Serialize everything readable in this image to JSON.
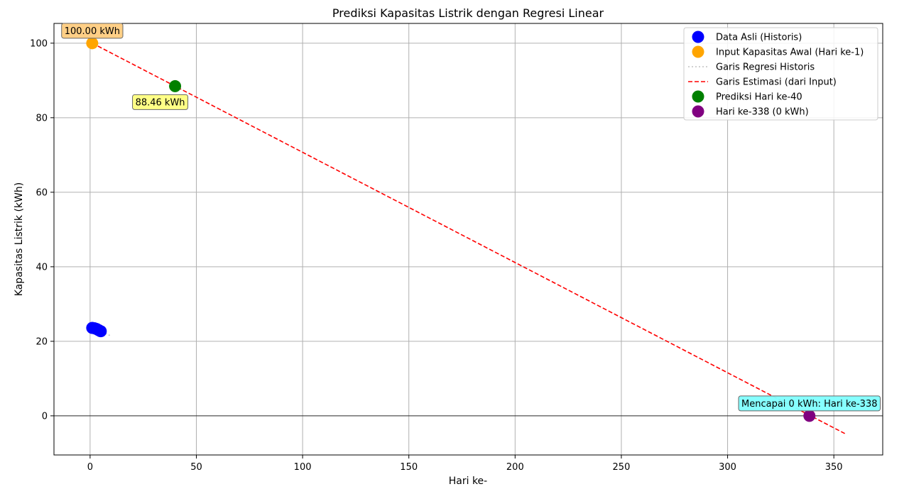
{
  "chart_data": {
    "type": "scatter",
    "title": "Prediksi Kapasitas Listrik dengan Regresi Linear",
    "xlabel": "Hari ke-",
    "ylabel": "Kapasitas Listrik (kWh)",
    "xlim": [
      -17,
      373
    ],
    "ylim": [
      -10.5,
      105.3
    ],
    "xticks": [
      0,
      50,
      100,
      150,
      200,
      250,
      300,
      350
    ],
    "yticks": [
      0,
      20,
      40,
      60,
      80,
      100
    ],
    "grid": true,
    "legend_position": "top-right",
    "zero_line": true,
    "series": [
      {
        "name": "Data Asli (Historis)",
        "kind": "scatter",
        "color": "#0000ff",
        "x": [
          1,
          2,
          3,
          4,
          5
        ],
        "y": [
          23.6,
          23.5,
          23.3,
          23.0,
          22.7
        ]
      },
      {
        "name": "Input Kapasitas Awal (Hari ke-1)",
        "kind": "scatter",
        "color": "#ffa500",
        "x": [
          1
        ],
        "y": [
          100
        ]
      },
      {
        "name": "Garis Regresi Historis",
        "kind": "line",
        "style": "dotted",
        "color": "#c0c0c0",
        "x": [
          1,
          10
        ],
        "y": [
          23.6,
          21.4
        ]
      },
      {
        "name": "Garis Estimasi (dari Input)",
        "kind": "line",
        "style": "dashed",
        "color": "#ff0000",
        "x": [
          1,
          356
        ],
        "y": [
          100,
          -5.0
        ]
      },
      {
        "name": "Prediksi Hari ke-40",
        "kind": "scatter",
        "color": "#008000",
        "x": [
          40
        ],
        "y": [
          88.46
        ]
      },
      {
        "name": "Hari ke-338 (0 kWh)",
        "kind": "scatter",
        "color": "#800080",
        "x": [
          338.5
        ],
        "y": [
          0
        ]
      }
    ],
    "annotations": [
      {
        "text": "100.00 kWh",
        "x": 1,
        "y": 100,
        "bg": "#ffcc80",
        "anchor": "above"
      },
      {
        "text": "88.46 kWh",
        "x": 40,
        "y": 88.46,
        "bg": "#ffff80",
        "anchor": "below-left"
      },
      {
        "text": "Mencapai 0 kWh: Hari ke-338",
        "x": 338.5,
        "y": 0,
        "bg": "#80ffff",
        "anchor": "above"
      }
    ]
  }
}
